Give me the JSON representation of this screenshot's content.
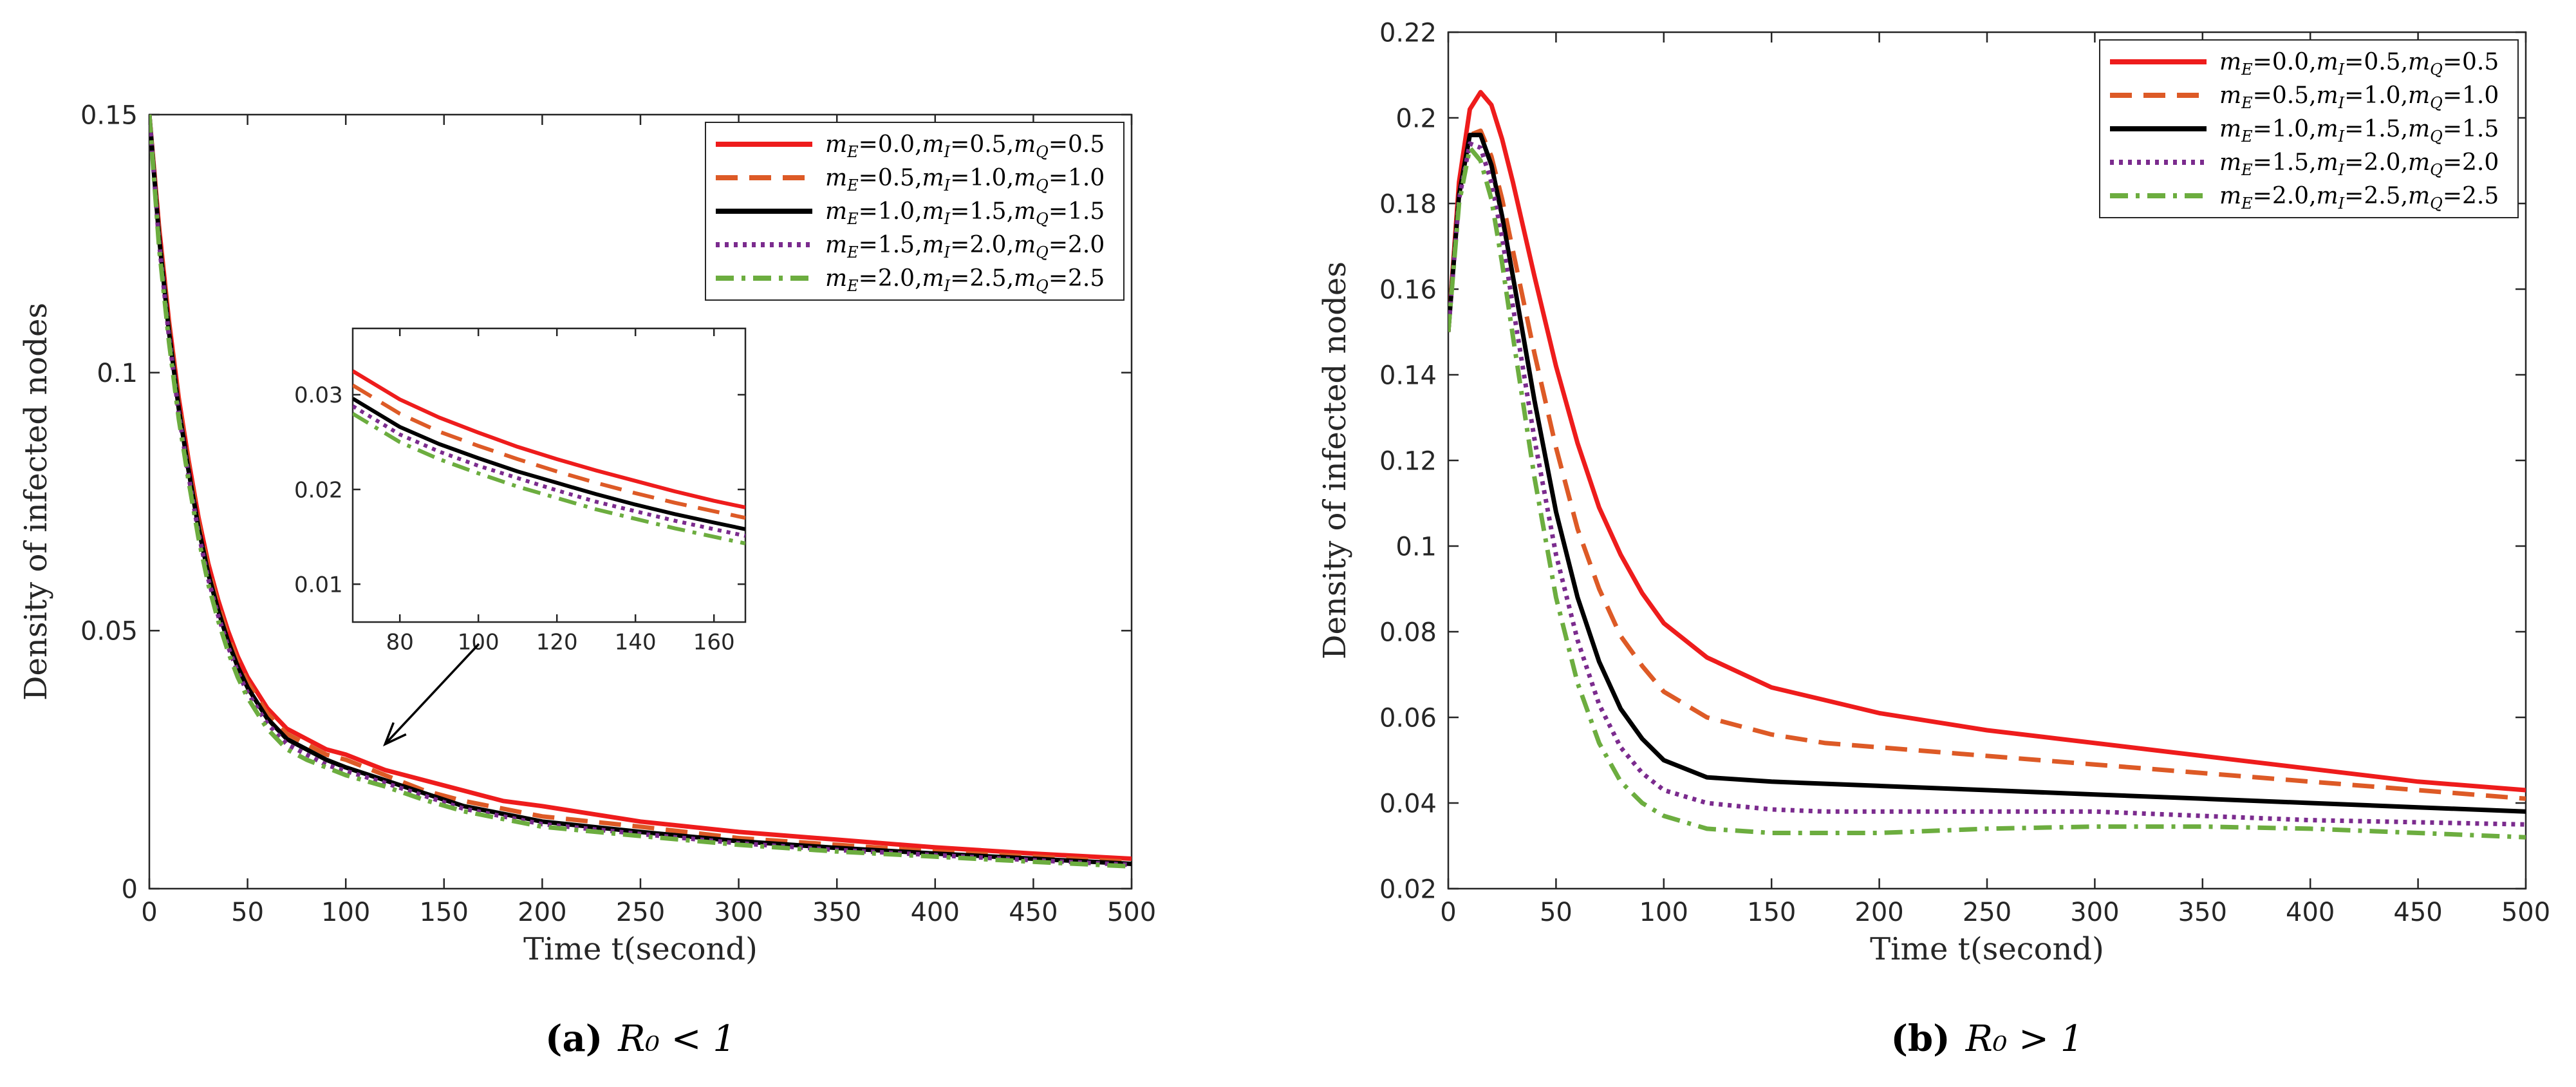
{
  "colors": {
    "red": "#ee1c1c",
    "orange": "#dd5a26",
    "black": "#000000",
    "purple": "#7b2b8e",
    "green": "#6cad3f"
  },
  "chart_data": [
    {
      "id": "a",
      "type": "line",
      "caption_letter": "(a)",
      "caption_text": "R₀ < 1",
      "xlabel": "Time t(second)",
      "ylabel": "Density of infected nodes",
      "xlim": [
        0,
        500
      ],
      "ylim": [
        0,
        0.15
      ],
      "xticks": [
        0,
        50,
        100,
        150,
        200,
        250,
        300,
        350,
        400,
        450,
        500
      ],
      "yticks": [
        0,
        0.05,
        0.1,
        0.15
      ],
      "ytick_labels": [
        "0",
        "0.05",
        "0.1",
        "0.15"
      ],
      "legend_position": "top-right",
      "x": [
        0,
        5,
        10,
        15,
        20,
        25,
        30,
        35,
        40,
        45,
        50,
        60,
        70,
        80,
        90,
        100,
        120,
        140,
        160,
        180,
        200,
        250,
        300,
        350,
        400,
        450,
        500
      ],
      "series": [
        {
          "name": "mE=0.0,mI=0.5,mQ=0.5",
          "label_html": [
            "m",
            "E",
            "=0.0,",
            "m",
            "I",
            "=0.5,",
            "m",
            "Q",
            "=0.5"
          ],
          "color_key": "red",
          "dash": "solid",
          "values": [
            0.15,
            0.128,
            0.11,
            0.095,
            0.083,
            0.072,
            0.063,
            0.056,
            0.05,
            0.045,
            0.041,
            0.035,
            0.031,
            0.029,
            0.027,
            0.026,
            0.023,
            0.021,
            0.019,
            0.017,
            0.016,
            0.013,
            0.011,
            0.0095,
            0.008,
            0.0068,
            0.0058
          ]
        },
        {
          "name": "mE=0.5,mI=1.0,mQ=1.0",
          "label_html": [
            "m",
            "E",
            "=0.5,",
            "m",
            "I",
            "=1.0,",
            "m",
            "Q",
            "=1.0"
          ],
          "color_key": "orange",
          "dash": "dashed",
          "values": [
            0.15,
            0.127,
            0.109,
            0.094,
            0.082,
            0.071,
            0.062,
            0.055,
            0.049,
            0.044,
            0.04,
            0.034,
            0.03,
            0.028,
            0.026,
            0.025,
            0.022,
            0.019,
            0.017,
            0.0155,
            0.014,
            0.012,
            0.0098,
            0.0085,
            0.0072,
            0.0062,
            0.0052
          ]
        },
        {
          "name": "mE=1.0,mI=1.5,mQ=1.5",
          "label_html": [
            "m",
            "E",
            "=1.0,",
            "m",
            "I",
            "=1.5,",
            "m",
            "Q",
            "=1.5"
          ],
          "color_key": "black",
          "dash": "solid",
          "values": [
            0.15,
            0.126,
            0.108,
            0.093,
            0.081,
            0.07,
            0.061,
            0.054,
            0.048,
            0.043,
            0.039,
            0.033,
            0.029,
            0.027,
            0.025,
            0.0235,
            0.021,
            0.0185,
            0.016,
            0.0145,
            0.013,
            0.011,
            0.0092,
            0.0079,
            0.0068,
            0.0058,
            0.0048
          ]
        },
        {
          "name": "mE=1.5,mI=2.0,mQ=2.0",
          "label_html": [
            "m",
            "E",
            "=1.5,",
            "m",
            "I",
            "=2.0,",
            "m",
            "Q",
            "=2.0"
          ],
          "color_key": "purple",
          "dash": "dotted",
          "values": [
            0.15,
            0.125,
            0.107,
            0.092,
            0.08,
            0.069,
            0.06,
            0.053,
            0.047,
            0.042,
            0.038,
            0.032,
            0.028,
            0.026,
            0.024,
            0.0228,
            0.0205,
            0.018,
            0.0155,
            0.014,
            0.0125,
            0.0106,
            0.0088,
            0.0075,
            0.0065,
            0.0055,
            0.0046
          ]
        },
        {
          "name": "mE=2.0,mI=2.5,mQ=2.5",
          "label_html": [
            "m",
            "E",
            "=2.0,",
            "m",
            "I",
            "=2.5,",
            "m",
            "Q",
            "=2.5"
          ],
          "color_key": "green",
          "dash": "dashdot",
          "values": [
            0.15,
            0.124,
            0.106,
            0.091,
            0.079,
            0.068,
            0.059,
            0.052,
            0.046,
            0.041,
            0.037,
            0.031,
            0.027,
            0.025,
            0.0235,
            0.022,
            0.0198,
            0.0172,
            0.015,
            0.0135,
            0.012,
            0.0102,
            0.0085,
            0.0072,
            0.0062,
            0.0052,
            0.0043
          ]
        }
      ],
      "inset": {
        "xlim": [
          68,
          168
        ],
        "ylim": [
          0.006,
          0.037
        ],
        "xticks": [
          80,
          100,
          120,
          140,
          160
        ],
        "yticks": [
          0.01,
          0.02,
          0.03
        ],
        "ytick_labels": [
          "0.01",
          "0.02",
          "0.03"
        ],
        "x": [
          68,
          80,
          90,
          100,
          110,
          120,
          130,
          140,
          150,
          160,
          168
        ],
        "series": [
          {
            "color_key": "red",
            "dash": "solid",
            "values": [
              0.0325,
              0.0295,
              0.0276,
              0.026,
              0.0245,
              0.0232,
              0.022,
              0.0209,
              0.0198,
              0.0188,
              0.0181
            ]
          },
          {
            "color_key": "orange",
            "dash": "dashed",
            "values": [
              0.031,
              0.028,
              0.0261,
              0.0246,
              0.0232,
              0.0219,
              0.0207,
              0.0196,
              0.0186,
              0.0177,
              0.017
            ]
          },
          {
            "color_key": "black",
            "dash": "solid",
            "values": [
              0.0296,
              0.0266,
              0.0248,
              0.0233,
              0.0219,
              0.0207,
              0.0195,
              0.0184,
              0.0174,
              0.0165,
              0.0158
            ]
          },
          {
            "color_key": "purple",
            "dash": "dotted",
            "values": [
              0.0288,
              0.0258,
              0.024,
              0.0225,
              0.0212,
              0.0199,
              0.0187,
              0.0177,
              0.0167,
              0.0158,
              0.0151
            ]
          },
          {
            "color_key": "green",
            "dash": "dashdot",
            "values": [
              0.028,
              0.025,
              0.0232,
              0.0217,
              0.0203,
              0.0191,
              0.0179,
              0.0169,
              0.0159,
              0.015,
              0.0143
            ]
          }
        ]
      }
    },
    {
      "id": "b",
      "type": "line",
      "caption_letter": "(b)",
      "caption_text": "R₀ > 1",
      "xlabel": "Time t(second)",
      "ylabel": "Density of infected nodes",
      "xlim": [
        0,
        500
      ],
      "ylim": [
        0.02,
        0.22
      ],
      "xticks": [
        0,
        50,
        100,
        150,
        200,
        250,
        300,
        350,
        400,
        450,
        500
      ],
      "yticks": [
        0.02,
        0.04,
        0.06,
        0.08,
        0.1,
        0.12,
        0.14,
        0.16,
        0.18,
        0.2,
        0.22
      ],
      "ytick_labels": [
        "0.02",
        "0.04",
        "0.06",
        "0.08",
        "0.1",
        "0.12",
        "0.14",
        "0.16",
        "0.18",
        "0.2",
        "0.22"
      ],
      "legend_position": "top-right",
      "x": [
        0,
        5,
        10,
        15,
        20,
        25,
        30,
        40,
        50,
        60,
        70,
        80,
        90,
        100,
        120,
        150,
        175,
        200,
        250,
        300,
        350,
        400,
        450,
        500
      ],
      "series": [
        {
          "name": "mE=0.0,mI=0.5,mQ=0.5",
          "label_html": [
            "m",
            "E",
            "=0.0,",
            "m",
            "I",
            "=0.5,",
            "m",
            "Q",
            "=0.5"
          ],
          "color_key": "red",
          "dash": "solid",
          "values": [
            0.15,
            0.185,
            0.202,
            0.206,
            0.203,
            0.195,
            0.185,
            0.163,
            0.142,
            0.124,
            0.109,
            0.098,
            0.089,
            0.082,
            0.074,
            0.067,
            0.064,
            0.061,
            0.057,
            0.054,
            0.051,
            0.048,
            0.045,
            0.043
          ]
        },
        {
          "name": "mE=0.5,mI=1.0,mQ=1.0",
          "label_html": [
            "m",
            "E",
            "=0.5,",
            "m",
            "I",
            "=1.0,",
            "m",
            "Q",
            "=1.0"
          ],
          "color_key": "orange",
          "dash": "dashed",
          "values": [
            0.15,
            0.182,
            0.196,
            0.197,
            0.191,
            0.181,
            0.169,
            0.145,
            0.123,
            0.104,
            0.09,
            0.079,
            0.072,
            0.066,
            0.06,
            0.056,
            0.054,
            0.053,
            0.051,
            0.049,
            0.047,
            0.045,
            0.043,
            0.041
          ]
        },
        {
          "name": "mE=1.0,mI=1.5,mQ=1.5",
          "label_html": [
            "m",
            "E",
            "=1.0,",
            "m",
            "I",
            "=1.5,",
            "m",
            "Q",
            "=1.5"
          ],
          "color_key": "black",
          "dash": "solid",
          "values": [
            0.15,
            0.182,
            0.196,
            0.196,
            0.189,
            0.177,
            0.163,
            0.134,
            0.108,
            0.088,
            0.073,
            0.062,
            0.055,
            0.05,
            0.046,
            0.045,
            0.0445,
            0.044,
            0.043,
            0.042,
            0.041,
            0.04,
            0.039,
            0.038
          ]
        },
        {
          "name": "mE=1.5,mI=2.0,mQ=2.0",
          "label_html": [
            "m",
            "E",
            "=1.5,",
            "m",
            "I",
            "=2.0,",
            "m",
            "Q",
            "=2.0"
          ],
          "color_key": "purple",
          "dash": "dotted",
          "values": [
            0.15,
            0.181,
            0.194,
            0.193,
            0.185,
            0.172,
            0.156,
            0.125,
            0.098,
            0.078,
            0.063,
            0.053,
            0.047,
            0.043,
            0.04,
            0.0385,
            0.038,
            0.038,
            0.038,
            0.038,
            0.037,
            0.036,
            0.0355,
            0.035
          ]
        },
        {
          "name": "mE=2.0,mI=2.5,mQ=2.5",
          "label_html": [
            "m",
            "E",
            "=2.0,",
            "m",
            "I",
            "=2.5,",
            "m",
            "Q",
            "=2.5"
          ],
          "color_key": "green",
          "dash": "dashdot",
          "values": [
            0.15,
            0.18,
            0.193,
            0.19,
            0.181,
            0.166,
            0.149,
            0.116,
            0.088,
            0.068,
            0.054,
            0.045,
            0.04,
            0.037,
            0.034,
            0.033,
            0.033,
            0.033,
            0.034,
            0.0345,
            0.0345,
            0.034,
            0.033,
            0.032
          ]
        }
      ]
    }
  ]
}
